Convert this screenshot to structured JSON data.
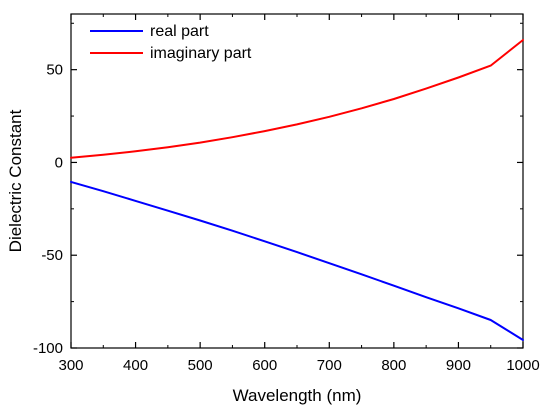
{
  "chart_data": {
    "type": "line",
    "xlabel": "Wavelength (nm)",
    "ylabel": "Dielectric Constant",
    "xlim": [
      300,
      1000
    ],
    "ylim": [
      -100,
      80
    ],
    "xticks": [
      300,
      400,
      500,
      600,
      700,
      800,
      900,
      1000
    ],
    "yticks": [
      -100,
      -50,
      0,
      50
    ],
    "grid": false,
    "legend_position": "top-left",
    "series": [
      {
        "name": "real part",
        "color": "#0000ff",
        "x": [
          300,
          350,
          400,
          450,
          500,
          550,
          600,
          650,
          700,
          750,
          800,
          850,
          900,
          950,
          1000
        ],
        "y": [
          -10.5,
          -15.5,
          -20.7,
          -26,
          -31.3,
          -36.8,
          -42.5,
          -48.3,
          -54.3,
          -60.3,
          -66.4,
          -72.6,
          -78.6,
          -84.9,
          -95.7
        ]
      },
      {
        "name": "imaginary part",
        "color": "#ff0000",
        "x": [
          300,
          350,
          400,
          450,
          500,
          550,
          600,
          650,
          700,
          750,
          800,
          850,
          900,
          950,
          1000
        ],
        "y": [
          2.5,
          4.1,
          6.0,
          8.2,
          10.7,
          13.6,
          16.9,
          20.5,
          24.6,
          29.2,
          34.2,
          39.8,
          45.8,
          52.2,
          66.0
        ]
      }
    ]
  }
}
